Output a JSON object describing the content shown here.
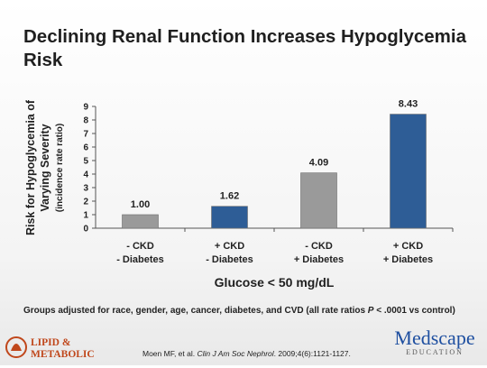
{
  "slide": {
    "title": "Declining Renal Function Increases Hypoglycemia Risk",
    "footnote_prefix": "Groups adjusted for race, gender, age, cancer, diabetes, and CVD (all rate ratios ",
    "footnote_p": "P",
    "footnote_suffix": " < .0001 vs control)",
    "citation_authors": "Moen MF, et al. ",
    "citation_journal": "Clin J Am Soc Nephrol",
    "citation_details": ". 2009;4(6):1121-1127.",
    "logo_left_line1": "LIPID &",
    "logo_left_line2": "METABOLIC",
    "logo_right_word": "Medscape",
    "logo_right_sub": "EDUCATION"
  },
  "colors": {
    "gray_bar": "#9a9a9a",
    "blue_bar": "#2e5d96",
    "logo_orange": "#c0471b",
    "logo_blue": "#1e4fa0"
  },
  "chart_data": {
    "type": "bar",
    "categories": [
      [
        "- CKD",
        "- Diabetes"
      ],
      [
        "+ CKD",
        "- Diabetes"
      ],
      [
        "- CKD",
        "+ Diabetes"
      ],
      [
        "+ CKD",
        "+ Diabetes"
      ]
    ],
    "values": [
      1.0,
      1.62,
      4.09,
      8.43
    ],
    "value_labels": [
      "1.00",
      "1.62",
      "4.09",
      "8.43"
    ],
    "bar_colors": [
      "#9a9a9a",
      "#2e5d96",
      "#9a9a9a",
      "#2e5d96"
    ],
    "yticks": [
      0,
      1,
      2,
      3,
      4,
      5,
      6,
      7,
      8,
      9
    ],
    "ylim": [
      0,
      9
    ],
    "ylabel": [
      "Risk for Hypoglycemia of",
      "Varying Severity"
    ],
    "ylabel_sub": "(incidence rate ratio)",
    "xlabel": "Glucose < 50 mg/dL",
    "grid": false,
    "legend": "none"
  }
}
